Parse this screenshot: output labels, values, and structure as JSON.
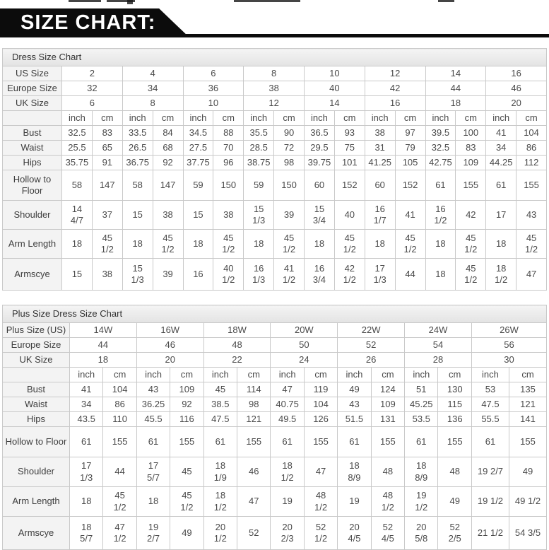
{
  "banner": {
    "title": "SIZE CHART:"
  },
  "colors": {
    "banner_bg": "#0c0c0c",
    "banner_text": "#ffffff",
    "table_border": "#c9c9c9",
    "header_bg": "#e9e9e9",
    "label_bg": "#f3f3f3"
  },
  "tables": [
    {
      "title": "Dress Size Chart",
      "size_rows": [
        {
          "label": "US Size",
          "values": [
            "2",
            "4",
            "6",
            "8",
            "10",
            "12",
            "14",
            "16"
          ]
        },
        {
          "label": "Europe Size",
          "values": [
            "32",
            "34",
            "36",
            "38",
            "40",
            "42",
            "44",
            "46"
          ]
        },
        {
          "label": "UK Size",
          "values": [
            "6",
            "8",
            "10",
            "12",
            "14",
            "16",
            "18",
            "20"
          ]
        }
      ],
      "unit_headers": [
        "inch",
        "cm"
      ],
      "measure_rows": [
        {
          "label": "Bust",
          "values": [
            "32.5",
            "83",
            "33.5",
            "84",
            "34.5",
            "88",
            "35.5",
            "90",
            "36.5",
            "93",
            "38",
            "97",
            "39.5",
            "100",
            "41",
            "104"
          ]
        },
        {
          "label": "Waist",
          "values": [
            "25.5",
            "65",
            "26.5",
            "68",
            "27.5",
            "70",
            "28.5",
            "72",
            "29.5",
            "75",
            "31",
            "79",
            "32.5",
            "83",
            "34",
            "86"
          ]
        },
        {
          "label": "Hips",
          "values": [
            "35.75",
            "91",
            "36.75",
            "92",
            "37.75",
            "96",
            "38.75",
            "98",
            "39.75",
            "101",
            "41.25",
            "105",
            "42.75",
            "109",
            "44.25",
            "112"
          ]
        },
        {
          "label": "Hollow to Floor",
          "values": [
            "58",
            "147",
            "58",
            "147",
            "59",
            "150",
            "59",
            "150",
            "60",
            "152",
            "60",
            "152",
            "61",
            "155",
            "61",
            "155"
          ]
        },
        {
          "label": "Shoulder",
          "values": [
            "14 4/7",
            "37",
            "15",
            "38",
            "15",
            "38",
            "15 1/3",
            "39",
            "15 3/4",
            "40",
            "16 1/7",
            "41",
            "16 1/2",
            "42",
            "17",
            "43"
          ]
        },
        {
          "label": "Arm Length",
          "values": [
            "18",
            "45 1/2",
            "18",
            "45 1/2",
            "18",
            "45 1/2",
            "18",
            "45 1/2",
            "18",
            "45 1/2",
            "18",
            "45 1/2",
            "18",
            "45 1/2",
            "18",
            "45 1/2"
          ]
        },
        {
          "label": "Armscye",
          "values": [
            "15",
            "38",
            "15 1/3",
            "39",
            "16",
            "40 1/2",
            "16 1/3",
            "41 1/2",
            "16 3/4",
            "42 1/2",
            "17 1/3",
            "44",
            "18",
            "45 1/2",
            "18 1/2",
            "47"
          ]
        }
      ]
    },
    {
      "title": "Plus Size Dress Size Chart",
      "size_rows": [
        {
          "label": "Plus Size (US)",
          "values": [
            "14W",
            "16W",
            "18W",
            "20W",
            "22W",
            "24W",
            "26W"
          ]
        },
        {
          "label": "Europe Size",
          "values": [
            "44",
            "46",
            "48",
            "50",
            "52",
            "54",
            "56"
          ]
        },
        {
          "label": "UK Size",
          "values": [
            "18",
            "20",
            "22",
            "24",
            "26",
            "28",
            "30"
          ]
        }
      ],
      "unit_headers": [
        "inch",
        "cm"
      ],
      "measure_rows": [
        {
          "label": "Bust",
          "values": [
            "41",
            "104",
            "43",
            "109",
            "45",
            "114",
            "47",
            "119",
            "49",
            "124",
            "51",
            "130",
            "53",
            "135"
          ]
        },
        {
          "label": "Waist",
          "values": [
            "34",
            "86",
            "36.25",
            "92",
            "38.5",
            "98",
            "40.75",
            "104",
            "43",
            "109",
            "45.25",
            "115",
            "47.5",
            "121"
          ]
        },
        {
          "label": "Hips",
          "values": [
            "43.5",
            "110",
            "45.5",
            "116",
            "47.5",
            "121",
            "49.5",
            "126",
            "51.5",
            "131",
            "53.5",
            "136",
            "55.5",
            "141"
          ]
        },
        {
          "label": "Hollow to Floor",
          "values": [
            "61",
            "155",
            "61",
            "155",
            "61",
            "155",
            "61",
            "155",
            "61",
            "155",
            "61",
            "155",
            "61",
            "155"
          ]
        },
        {
          "label": "Shoulder",
          "values": [
            "17 1/3",
            "44",
            "17 5/7",
            "45",
            "18 1/9",
            "46",
            "18 1/2",
            "47",
            "18 8/9",
            "48",
            "18 8/9",
            "48",
            "19 2/7",
            "49"
          ]
        },
        {
          "label": "Arm Length",
          "values": [
            "18",
            "45 1/2",
            "18",
            "45 1/2",
            "18 1/2",
            "47",
            "19",
            "48 1/2",
            "19",
            "48 1/2",
            "19 1/2",
            "49",
            "19 1/2",
            "49 1/2"
          ]
        },
        {
          "label": "Armscye",
          "values": [
            "18 5/7",
            "47 1/2",
            "19 2/7",
            "49",
            "20 1/2",
            "52",
            "20 2/3",
            "52 1/2",
            "20 4/5",
            "52 4/5",
            "20 5/8",
            "52 2/5",
            "21 1/2",
            "54 3/5"
          ]
        }
      ]
    }
  ]
}
